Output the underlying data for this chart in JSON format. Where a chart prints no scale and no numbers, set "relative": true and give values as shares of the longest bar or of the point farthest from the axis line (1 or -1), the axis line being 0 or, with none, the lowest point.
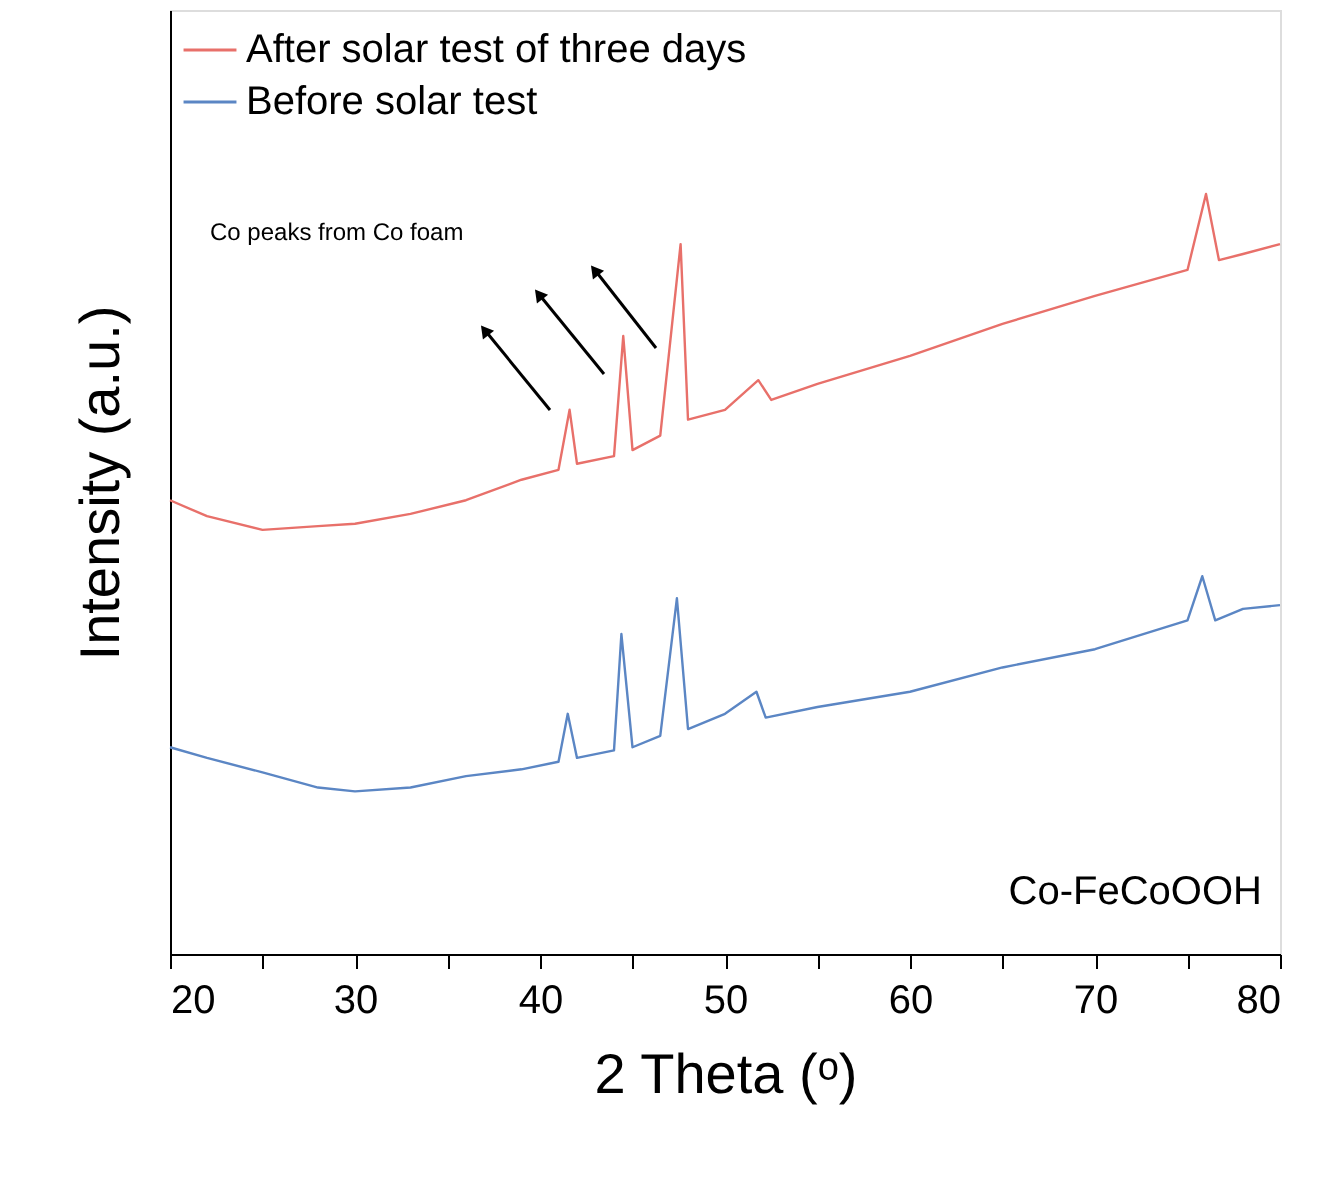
{
  "chart_data": {
    "type": "line",
    "xlabel": "2 Theta (ᵒ)",
    "ylabel": "Intensity (a.u.)",
    "relative": true,
    "xlim": [
      20,
      80
    ],
    "xticks": [
      20,
      {
        "value": 25,
        "label": null
      },
      30,
      {
        "value": 35,
        "label": null
      },
      40,
      {
        "value": 45,
        "label": null
      },
      50,
      {
        "value": 55,
        "label": null
      },
      60,
      {
        "value": 65,
        "label": null
      },
      70,
      {
        "value": 75,
        "label": null
      },
      80
    ],
    "grid": false,
    "tick_labels": "x",
    "legend": "top left",
    "marker": "none",
    "line_style": "solid",
    "annotations": [
      "Co peaks from Co foam",
      "Co-FeCoOOH"
    ],
    "series": [
      {
        "name": "After solar test of three days",
        "color": "#e8706a",
        "x": [
          20,
          22,
          25,
          28,
          30,
          33,
          36,
          39,
          41,
          41.6,
          42,
          44,
          44.5,
          45,
          46.5,
          47.6,
          48,
          50,
          51.8,
          52.5,
          55,
          60,
          65,
          70,
          75,
          76,
          76.7,
          78,
          80
        ],
        "values": [
          0.597,
          0.576,
          0.558,
          0.563,
          0.566,
          0.579,
          0.597,
          0.624,
          0.637,
          0.716,
          0.645,
          0.655,
          0.813,
          0.663,
          0.682,
          0.934,
          0.703,
          0.716,
          0.755,
          0.729,
          0.75,
          0.787,
          0.829,
          0.866,
          0.9,
          1.0,
          0.913,
          0.921,
          0.934
        ]
      },
      {
        "name": "Before solar test",
        "color": "#5b86c4",
        "x": [
          20,
          22,
          25,
          28,
          30,
          33,
          36,
          39,
          41,
          41.5,
          42,
          44,
          44.4,
          45,
          46.5,
          47.4,
          48,
          50,
          51.7,
          52.2,
          55,
          60,
          65,
          70,
          75,
          75.8,
          76.5,
          78,
          80
        ],
        "values": [
          0.272,
          0.258,
          0.239,
          0.219,
          0.214,
          0.219,
          0.234,
          0.243,
          0.253,
          0.316,
          0.258,
          0.268,
          0.421,
          0.272,
          0.287,
          0.468,
          0.296,
          0.316,
          0.345,
          0.311,
          0.325,
          0.345,
          0.377,
          0.401,
          0.439,
          0.497,
          0.439,
          0.454,
          0.459
        ]
      }
    ]
  }
}
